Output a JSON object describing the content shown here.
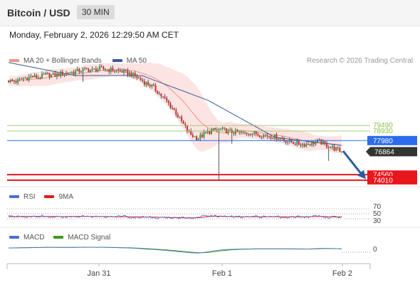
{
  "header": {
    "title": "Bitcoin / USD",
    "timeframe": "30 MIN"
  },
  "datetime": "Monday, February 2, 2026 12:29:50 AM CET",
  "main_legend": [
    {
      "label": "MA 20 + Bollinger Bands",
      "color": "#f4908a"
    },
    {
      "label": "MA 50",
      "color": "#3b5a9a"
    }
  ],
  "credit": "Research © 2026 Trading Central",
  "rsi_legend": [
    {
      "label": "RSI",
      "color": "#4a6fd6"
    },
    {
      "label": "9MA",
      "color": "#e21a1a"
    }
  ],
  "macd_legend": [
    {
      "label": "MACD",
      "color": "#4a6fd6"
    },
    {
      "label": "MACD Signal",
      "color": "#3a9a1a"
    }
  ],
  "x_axis": [
    "Jan 31",
    "Feb 1",
    "Feb 2"
  ],
  "chart_data": [
    {
      "type": "candlestick",
      "title": "Bitcoin / USD",
      "levels": [
        {
          "value": 79490,
          "label": "79490",
          "kind": "resistance",
          "color": "#8fbf4a"
        },
        {
          "value": 78930,
          "label": "78930",
          "kind": "resistance",
          "color": "#8fbf4a"
        },
        {
          "value": 77980,
          "label": "77980",
          "kind": "pivot",
          "color": "#2c6bed"
        },
        {
          "value": 76864,
          "label": "76864",
          "kind": "last_price",
          "color": "#333333"
        },
        {
          "value": 74560,
          "label": "74560",
          "kind": "support",
          "color": "#e8161d"
        },
        {
          "value": 74010,
          "label": "74010",
          "kind": "support",
          "color": "#e8161d"
        }
      ],
      "price_path": [
        84000,
        83900,
        84200,
        84400,
        84300,
        84600,
        84500,
        84700,
        84800,
        84900,
        85100,
        85000,
        85200,
        85100,
        85000,
        84900,
        84700,
        84300,
        83800,
        83400,
        82600,
        81800,
        80900,
        79700,
        78600,
        78200,
        78700,
        79000,
        79100,
        78900,
        78800,
        78700,
        78800,
        78600,
        78500,
        78400,
        78200,
        77900,
        77700,
        77600,
        77700,
        77900,
        77500,
        77200,
        76864
      ],
      "ma50": [
        85800,
        84500,
        84500,
        82000,
        78300,
        77500
      ],
      "projection": {
        "from": 76864,
        "to": 74400,
        "color": "#2a5d9e"
      }
    },
    {
      "type": "line",
      "title": "RSI",
      "ylabels": [
        "70",
        "50",
        "30"
      ],
      "series": [
        {
          "name": "RSI",
          "color": "#4a6fd6"
        },
        {
          "name": "9MA",
          "color": "#e21a1a"
        }
      ]
    },
    {
      "type": "line",
      "title": "MACD",
      "ylabels": [
        "0"
      ],
      "series": [
        {
          "name": "MACD",
          "color": "#4a6fd6"
        },
        {
          "name": "MACD Signal",
          "color": "#3a9a1a"
        }
      ]
    }
  ]
}
